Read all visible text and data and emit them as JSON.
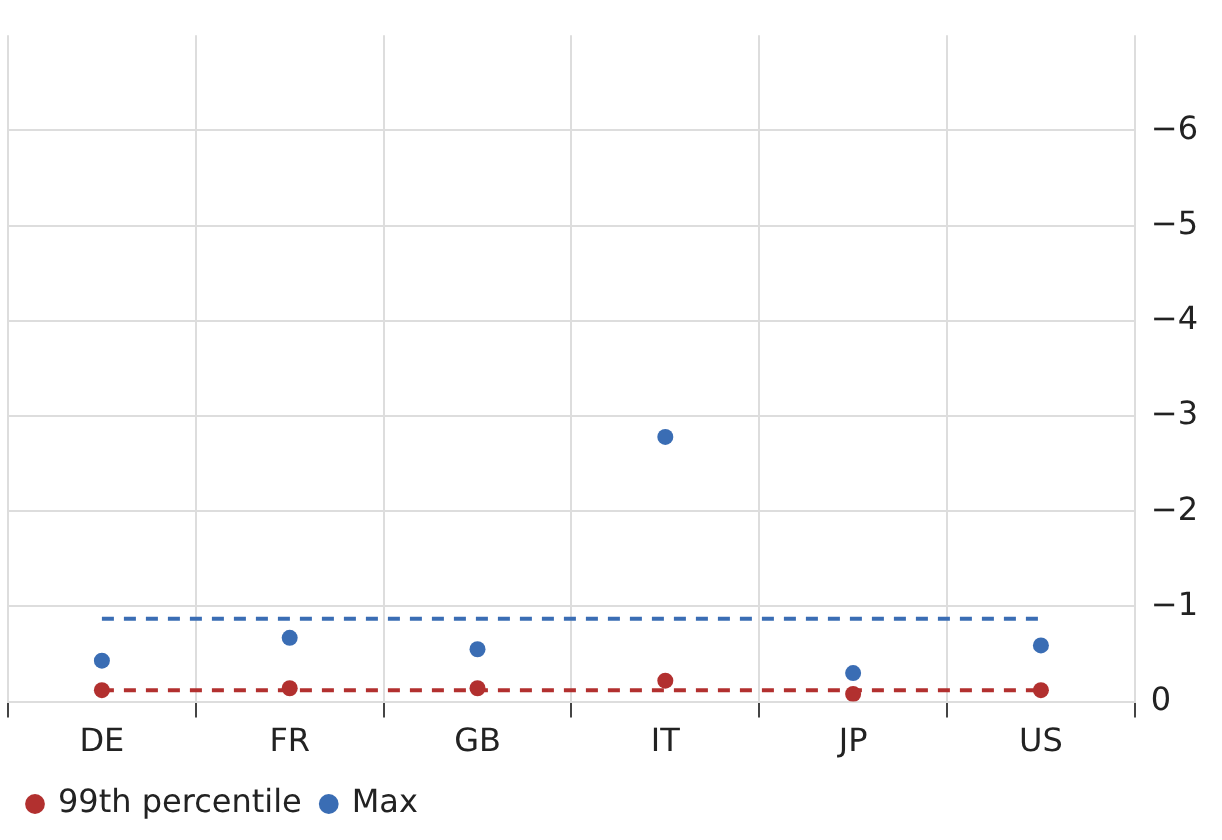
{
  "chart_data": {
    "type": "scatter",
    "categories": [
      "DE",
      "FR",
      "GB",
      "IT",
      "JP",
      "US"
    ],
    "series": [
      {
        "name": "99th percentile",
        "color": "#b2302f",
        "values": [
          -0.12,
          -0.14,
          -0.14,
          -0.22,
          -0.08,
          -0.12
        ]
      },
      {
        "name": "Max",
        "color": "#3a6db4",
        "values": [
          -0.43,
          -0.67,
          -0.55,
          -2.78,
          -0.3,
          -0.59
        ]
      }
    ],
    "ylim": [
      0,
      -7
    ],
    "yticks": [
      0,
      {
        "value": -1,
        "label": "−1"
      },
      {
        "value": -2,
        "label": "−2"
      },
      {
        "value": -3,
        "label": "−3"
      },
      {
        "value": -4,
        "label": "−4"
      },
      {
        "value": -5,
        "label": "−5"
      },
      {
        "value": -6,
        "label": "−6"
      }
    ],
    "ref_lines": [
      {
        "axis": "y",
        "value": -0.12,
        "color": "#b2302f",
        "line_style": "dashed"
      },
      {
        "axis": "y",
        "value": -0.87,
        "color": "#3a6db4",
        "line_style": "dashed"
      }
    ],
    "grid": true,
    "legend": "bottom left",
    "marker": "circle"
  }
}
